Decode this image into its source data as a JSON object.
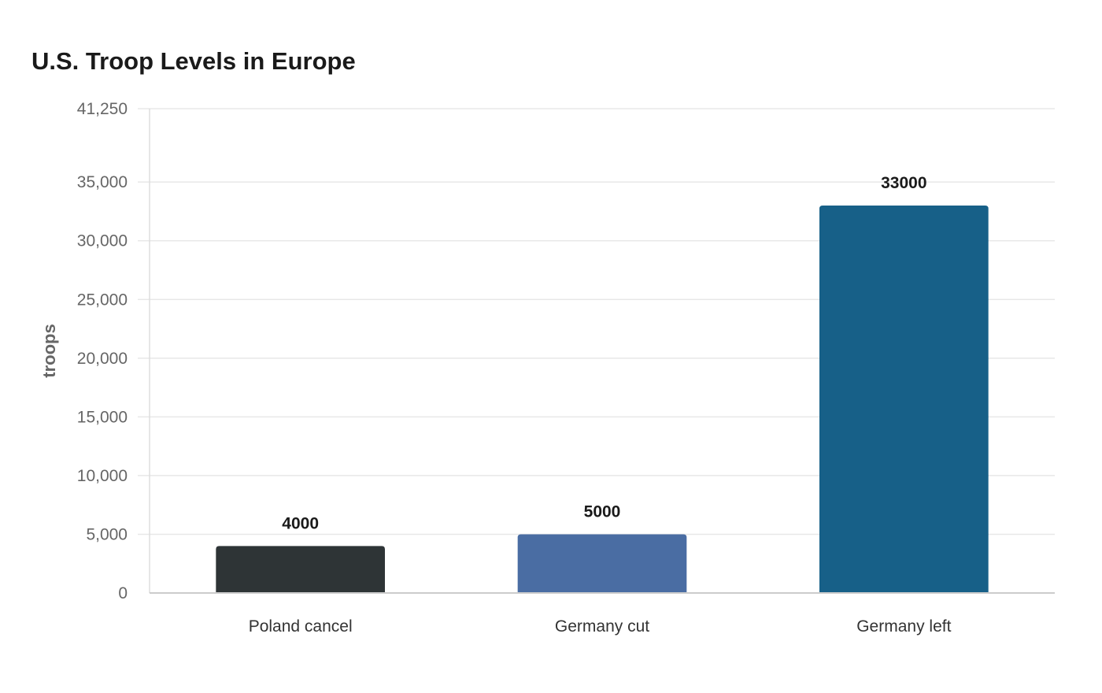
{
  "chart_data": {
    "type": "bar",
    "title": "U.S. Troop Levels in Europe",
    "xlabel": "",
    "ylabel": "troops",
    "categories": [
      "Poland cancel",
      "Germany cut",
      "Germany left"
    ],
    "values": [
      4000,
      5000,
      33000
    ],
    "value_labels": [
      "4000",
      "5000",
      "33000"
    ],
    "colors": [
      "#2e3436",
      "#4a6da3",
      "#176088"
    ],
    "ylim": [
      0,
      41250
    ],
    "yticks": [
      0,
      5000,
      10000,
      15000,
      20000,
      25000,
      30000,
      35000,
      41250
    ],
    "ytick_labels": [
      "0",
      "5,000",
      "10,000",
      "15,000",
      "20,000",
      "25,000",
      "30,000",
      "35,000",
      "41,250"
    ],
    "grid": true,
    "legend": "none"
  }
}
